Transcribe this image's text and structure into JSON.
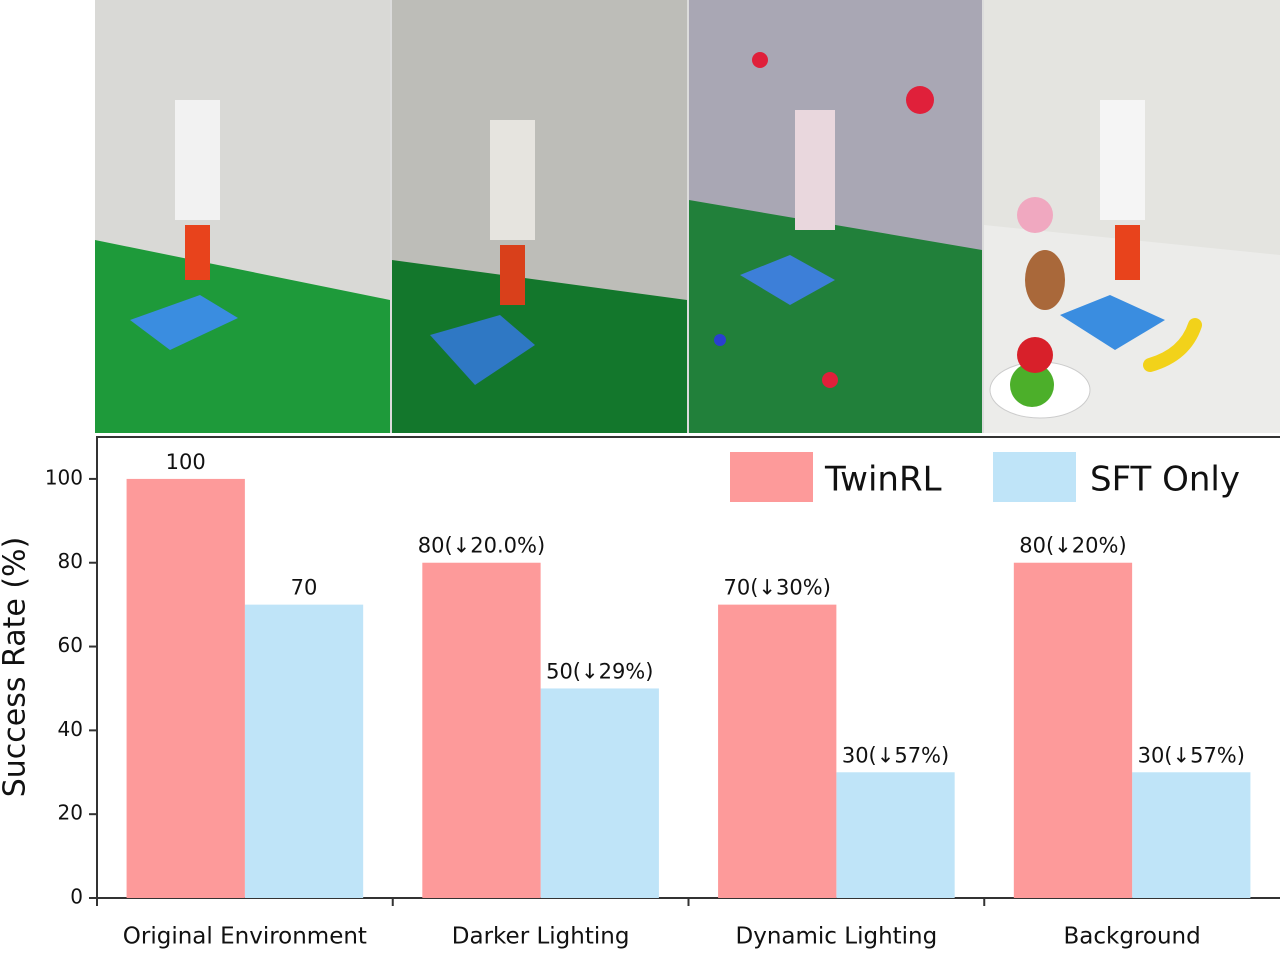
{
  "chart_data": {
    "type": "bar",
    "y_label": "Success Rate (%)",
    "categories": [
      "Original Environment",
      "Darker Lighting",
      "Dynamic Lighting",
      "Background"
    ],
    "series": [
      {
        "name": "TwinRL",
        "color": "#fd9a9a",
        "values": [
          100,
          80,
          70,
          80
        ],
        "value_labels": [
          "100",
          "80(↓20.0%)",
          "70(↓30%)",
          "80(↓20%)"
        ]
      },
      {
        "name": "SFT Only",
        "color": "#bfe4f8",
        "values": [
          70,
          50,
          30,
          30
        ],
        "value_labels": [
          "70",
          "50(↓29%)",
          "30(↓57%)",
          "30(↓57%)"
        ]
      }
    ],
    "ylim": [
      0,
      110
    ],
    "yticks": [
      0,
      20,
      40,
      60,
      80,
      100
    ],
    "legend": "upper right"
  }
}
